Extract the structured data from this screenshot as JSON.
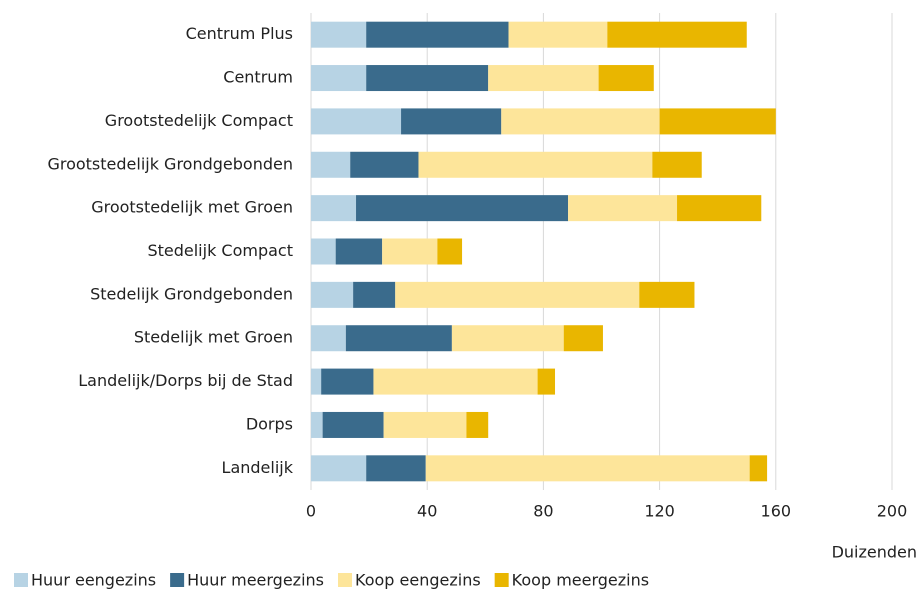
{
  "chart_data": {
    "type": "stacked_barh",
    "xlabel": "Duizenden",
    "categories": [
      "Centrum Plus",
      "Centrum",
      "Grootstedelijk Compact",
      "Grootstedelijk Grondgebonden",
      "Grootstedelijk met Groen",
      "Stedelijk Compact",
      "Stedelijk Grondgebonden",
      "Stedelijk met Groen",
      "Landelijk/Dorps bij de Stad",
      "Dorps",
      "Landelijk"
    ],
    "series": [
      {
        "name": "Huur eengezins",
        "color": "#b7d3e4",
        "values": [
          19,
          19,
          31,
          13.5,
          15.5,
          8.5,
          14.5,
          12,
          3.5,
          4,
          19
        ]
      },
      {
        "name": "Huur meergezins",
        "color": "#3a6b8c",
        "values": [
          49,
          42,
          34.5,
          23.5,
          73,
          16,
          14.5,
          36.5,
          18,
          21,
          20.5
        ]
      },
      {
        "name": "Koop eengezins",
        "color": "#fde59a",
        "values": [
          34,
          38,
          54.5,
          80.5,
          37.5,
          19,
          84,
          38.5,
          56.5,
          28.5,
          111.5
        ]
      },
      {
        "name": "Koop meergezins",
        "color": "#e9b600",
        "values": [
          48,
          19,
          40,
          17,
          29,
          8.5,
          19,
          13.5,
          6,
          7.5,
          6
        ]
      }
    ],
    "xlim": [
      0,
      200
    ],
    "xticks": [
      0,
      40,
      80,
      120,
      160,
      200
    ],
    "grid": true
  }
}
